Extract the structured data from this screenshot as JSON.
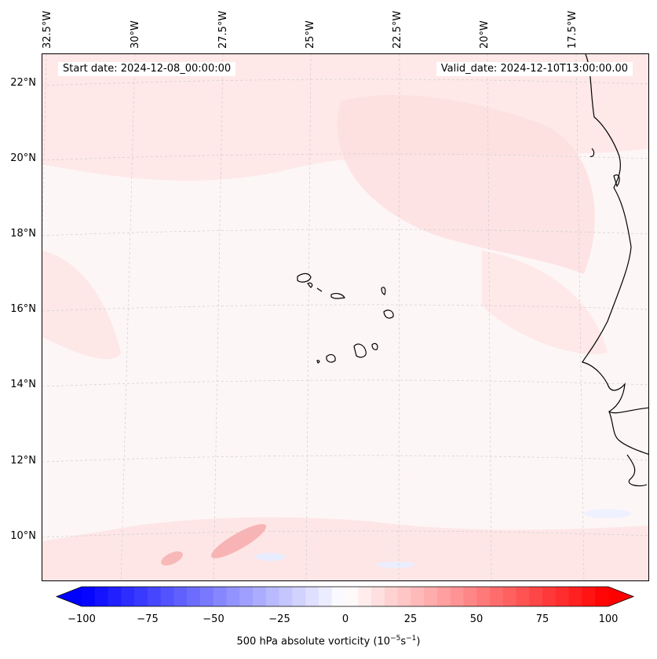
{
  "header": {
    "start_date": "Start date: 2024-12-08_00:00:00",
    "valid_date": "Valid_date: 2024-12-10T13:00:00.00"
  },
  "axes": {
    "lon_labels": [
      "32.5°W",
      "30°W",
      "27.5°W",
      "25°W",
      "22.5°W",
      "20°W",
      "17.5°W"
    ],
    "lat_labels": [
      "22°N",
      "20°N",
      "18°N",
      "16°N",
      "14°N",
      "12°N",
      "10°N"
    ]
  },
  "colorbar": {
    "label_prefix": "500 hPa absolute vorticity (10",
    "label_exp1": "−5",
    "label_mid": "s",
    "label_exp2": "−1",
    "label_suffix": ")",
    "ticks": [
      "−100",
      "−75",
      "−50",
      "−25",
      "0",
      "25",
      "50",
      "75",
      "100"
    ],
    "min": -100,
    "max": 100,
    "step": 5,
    "low_color": "#0000ff",
    "mid_color": "#ffffff",
    "high_color": "#ff0000"
  },
  "style": {
    "grid_color": "#c8c8c8",
    "coast_color": "#000000",
    "field_color": "#fde6e6"
  }
}
